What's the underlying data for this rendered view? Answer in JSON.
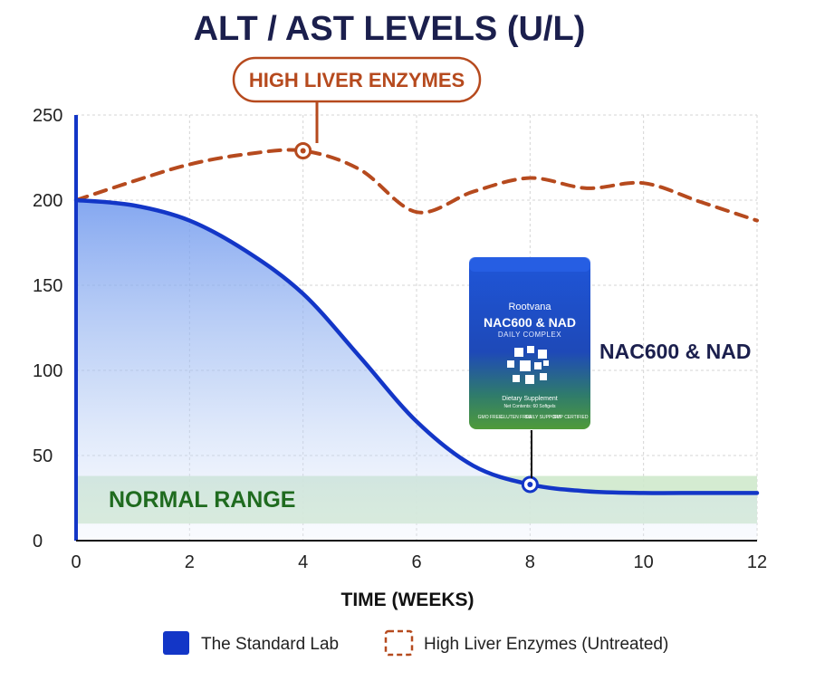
{
  "chart_data": {
    "type": "line",
    "title": "ALT / AST LEVELS (U/L)",
    "xlabel": "TIME (WEEKS)",
    "ylabel": "",
    "xlim": [
      0,
      12
    ],
    "ylim": [
      0,
      250
    ],
    "x_ticks": [
      0,
      2,
      4,
      6,
      8,
      10,
      12
    ],
    "y_ticks": [
      0,
      50,
      100,
      150,
      200,
      250
    ],
    "grid": true,
    "legend_position": "bottom",
    "series": [
      {
        "name": "The Standard Lab",
        "style": "solid-filled",
        "color": "#1336c7",
        "x": [
          0,
          1,
          2,
          3,
          4,
          5,
          6,
          7,
          8,
          9,
          10,
          11,
          12
        ],
        "y": [
          200,
          197,
          188,
          170,
          145,
          108,
          70,
          44,
          33,
          29,
          28,
          28,
          28
        ]
      },
      {
        "name": "High Liver Enzymes (Untreated)",
        "style": "dashed",
        "color": "#b64a1e",
        "x": [
          0,
          1,
          2,
          3,
          4,
          5,
          6,
          7,
          8,
          9,
          10,
          11,
          12
        ],
        "y": [
          200,
          211,
          221,
          227,
          229,
          218,
          193,
          205,
          213,
          207,
          210,
          199,
          188
        ]
      }
    ],
    "normal_range": {
      "label": "NORMAL RANGE",
      "min": 10,
      "max": 38
    },
    "annotations": [
      {
        "text": "HIGH LIVER ENZYMES",
        "x": 4,
        "y": 229,
        "series": "High Liver Enzymes (Untreated)"
      },
      {
        "text": "NAC600 & NAD",
        "x": 8,
        "y": 33,
        "series": "The Standard Lab"
      }
    ]
  },
  "product": {
    "brand": "Rootvana",
    "name": "NAC600 & NAD",
    "subtitle": "DAILY COMPLEX",
    "line1": "Dietary Supplement",
    "line2": "Net Contents: 60 Softgels",
    "badges": [
      "GMO FREE",
      "GLUTEN FREE",
      "DAILY SUPPORT",
      "GMP CERTIFIED"
    ]
  },
  "colors": {
    "treated": "#1336c7",
    "untreated": "#b64a1e",
    "normal_band": "#cfe9cc",
    "title": "#1b1f4d"
  }
}
